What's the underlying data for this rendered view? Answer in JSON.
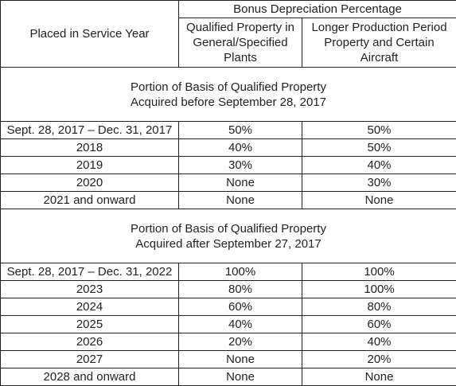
{
  "header": {
    "year_column": "Placed in Service Year",
    "group": "Bonus Depreciation Percentage",
    "columns": [
      "Qualified Property in\nGeneral/Specified\nPlants",
      "Longer Production Period\nProperty and Certain\nAircraft"
    ]
  },
  "sections": [
    {
      "title": "Portion of Basis of Qualified Property\nAcquired before September 28, 2017",
      "rows": [
        [
          "Sept. 28, 2017 – Dec. 31, 2017",
          "50%",
          "50%"
        ],
        [
          "2018",
          "40%",
          "50%"
        ],
        [
          "2019",
          "30%",
          "40%"
        ],
        [
          "2020",
          "None",
          "30%"
        ],
        [
          "2021 and onward",
          "None",
          "None"
        ]
      ]
    },
    {
      "title": "Portion of Basis of Qualified Property\nAcquired after September 27, 2017",
      "rows": [
        [
          "Sept. 28, 2017 – Dec. 31, 2022",
          "100%",
          "100%"
        ],
        [
          "2023",
          "80%",
          "100%"
        ],
        [
          "2024",
          "60%",
          "80%"
        ],
        [
          "2025",
          "40%",
          "60%"
        ],
        [
          "2026",
          "20%",
          "40%"
        ],
        [
          "2027",
          "None",
          "20%"
        ],
        [
          "2028 and onward",
          "None",
          "None"
        ]
      ]
    }
  ]
}
